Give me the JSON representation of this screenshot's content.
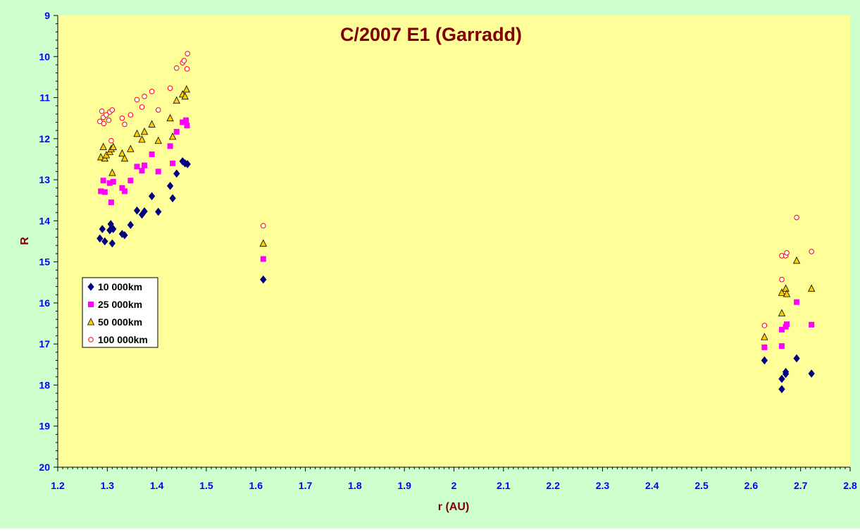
{
  "colors": {
    "background": "#ccffcc",
    "plot_area": "#ffff99",
    "title": "#800000",
    "tick_labels": "#0000ff",
    "series_10000": "#000080",
    "series_25000": "#ff00ff",
    "series_50000": "#ffcc00",
    "series_100000": "#ff0000"
  },
  "chart_data": {
    "type": "scatter",
    "title": "C/2007 E1 (Garradd)",
    "xlabel": "r (AU)",
    "ylabel": "R",
    "xlim": [
      1.2,
      2.8
    ],
    "ylim": [
      9,
      20
    ],
    "y_reversed": true,
    "x_ticks": [
      "1.2",
      "1.3",
      "1.4",
      "1.5",
      "1.6",
      "1.7",
      "1.8",
      "1.9",
      "2",
      "2.1",
      "2.2",
      "2.3",
      "2.4",
      "2.5",
      "2.6",
      "2.7",
      "2.8"
    ],
    "y_ticks": [
      "9",
      "10",
      "11",
      "12",
      "13",
      "14",
      "15",
      "16",
      "17",
      "18",
      "19",
      "20"
    ],
    "grid": false,
    "legend_position": "left",
    "series": [
      {
        "name": "10 000km",
        "marker": "diamond",
        "x": [
          1.285,
          1.29,
          1.295,
          1.305,
          1.307,
          1.31,
          1.312,
          1.33,
          1.335,
          1.347,
          1.36,
          1.37,
          1.375,
          1.39,
          1.403,
          1.427,
          1.432,
          1.44,
          1.452,
          1.457,
          1.462,
          1.615,
          2.627,
          2.662,
          2.662,
          2.67,
          2.67,
          2.692,
          2.722
        ],
        "y": [
          14.43,
          14.2,
          14.5,
          14.23,
          14.08,
          14.55,
          14.2,
          14.32,
          14.35,
          14.1,
          13.75,
          13.85,
          13.77,
          13.4,
          13.78,
          13.15,
          13.45,
          12.85,
          12.55,
          12.6,
          12.62,
          15.43,
          17.4,
          17.85,
          18.1,
          17.73,
          17.68,
          17.35,
          17.72
        ]
      },
      {
        "name": "25 000km",
        "marker": "square",
        "x": [
          1.287,
          1.292,
          1.295,
          1.305,
          1.308,
          1.312,
          1.33,
          1.335,
          1.347,
          1.36,
          1.37,
          1.375,
          1.39,
          1.403,
          1.427,
          1.432,
          1.44,
          1.452,
          1.459,
          1.461,
          1.615,
          2.627,
          2.662,
          2.662,
          2.67,
          2.672,
          2.692,
          2.722
        ],
        "y": [
          13.28,
          13.02,
          13.3,
          13.08,
          13.55,
          13.05,
          13.2,
          13.28,
          13.02,
          12.68,
          12.78,
          12.65,
          12.38,
          12.8,
          12.18,
          12.6,
          11.83,
          11.6,
          11.55,
          11.68,
          14.93,
          17.08,
          16.65,
          17.05,
          16.58,
          16.52,
          15.98,
          16.53
        ]
      },
      {
        "name": "50 000km",
        "marker": "triangle",
        "x": [
          1.287,
          1.292,
          1.295,
          1.298,
          1.305,
          1.308,
          1.31,
          1.312,
          1.33,
          1.335,
          1.347,
          1.36,
          1.37,
          1.375,
          1.39,
          1.403,
          1.427,
          1.432,
          1.44,
          1.452,
          1.457,
          1.46,
          1.615,
          2.627,
          2.662,
          2.662,
          2.67,
          2.672,
          2.692,
          2.722
        ],
        "y": [
          12.45,
          12.2,
          12.48,
          12.4,
          12.32,
          12.25,
          12.83,
          12.2,
          12.36,
          12.48,
          12.25,
          11.88,
          12.02,
          11.83,
          11.65,
          12.05,
          11.5,
          11.95,
          11.07,
          10.92,
          10.97,
          10.8,
          14.55,
          16.83,
          16.25,
          15.75,
          15.65,
          15.78,
          14.97,
          15.65
        ]
      },
      {
        "name": "100 000km",
        "marker": "circle",
        "x": [
          1.285,
          1.289,
          1.292,
          1.293,
          1.298,
          1.303,
          1.305,
          1.308,
          1.31,
          1.33,
          1.335,
          1.347,
          1.36,
          1.37,
          1.375,
          1.39,
          1.403,
          1.427,
          1.44,
          1.452,
          1.455,
          1.461,
          1.462,
          1.615,
          2.627,
          2.662,
          2.662,
          2.67,
          2.672,
          2.692,
          2.722
        ],
        "y": [
          11.58,
          11.33,
          11.48,
          11.63,
          11.42,
          11.55,
          11.35,
          12.05,
          11.3,
          11.5,
          11.65,
          11.42,
          11.05,
          11.23,
          10.97,
          10.85,
          11.3,
          10.77,
          10.28,
          10.15,
          10.1,
          10.3,
          9.93,
          14.12,
          16.55,
          14.85,
          15.43,
          14.85,
          14.78,
          13.92,
          14.75
        ]
      }
    ]
  }
}
